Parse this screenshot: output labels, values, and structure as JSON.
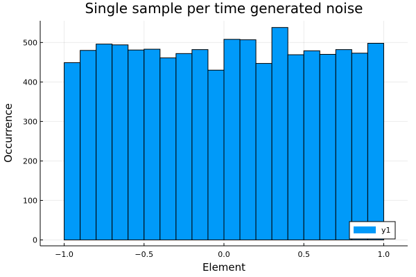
{
  "chart_data": {
    "type": "bar",
    "title": "Single sample per time generated noise",
    "xlabel": "Element",
    "ylabel": "Occurrence",
    "xlim": [
      -1.15,
      1.15
    ],
    "ylim": [
      -15,
      555
    ],
    "xticks": [
      -1.0,
      -0.5,
      0.0,
      0.5,
      1.0
    ],
    "xtick_labels": [
      "-1.0",
      "-0.5",
      "0.0",
      "0.5",
      "1.0"
    ],
    "yticks": [
      0,
      100,
      200,
      300,
      400,
      500
    ],
    "ytick_labels": [
      "0",
      "100",
      "200",
      "300",
      "400",
      "500"
    ],
    "grid": true,
    "legend_position": "bottom-right",
    "bin_edges": [
      -1.0,
      -0.9,
      -0.8,
      -0.7,
      -0.6,
      -0.5,
      -0.4,
      -0.3,
      -0.2,
      -0.1,
      0.0,
      0.1,
      0.2,
      0.3,
      0.4,
      0.5,
      0.6,
      0.7,
      0.8,
      0.9,
      1.0
    ],
    "series": [
      {
        "name": "y1",
        "color": "#009af9",
        "values": [
          449,
          480,
          496,
          494,
          481,
          483,
          461,
          472,
          482,
          430,
          508,
          507,
          447,
          538,
          469,
          479,
          470,
          482,
          473,
          498
        ]
      }
    ]
  }
}
